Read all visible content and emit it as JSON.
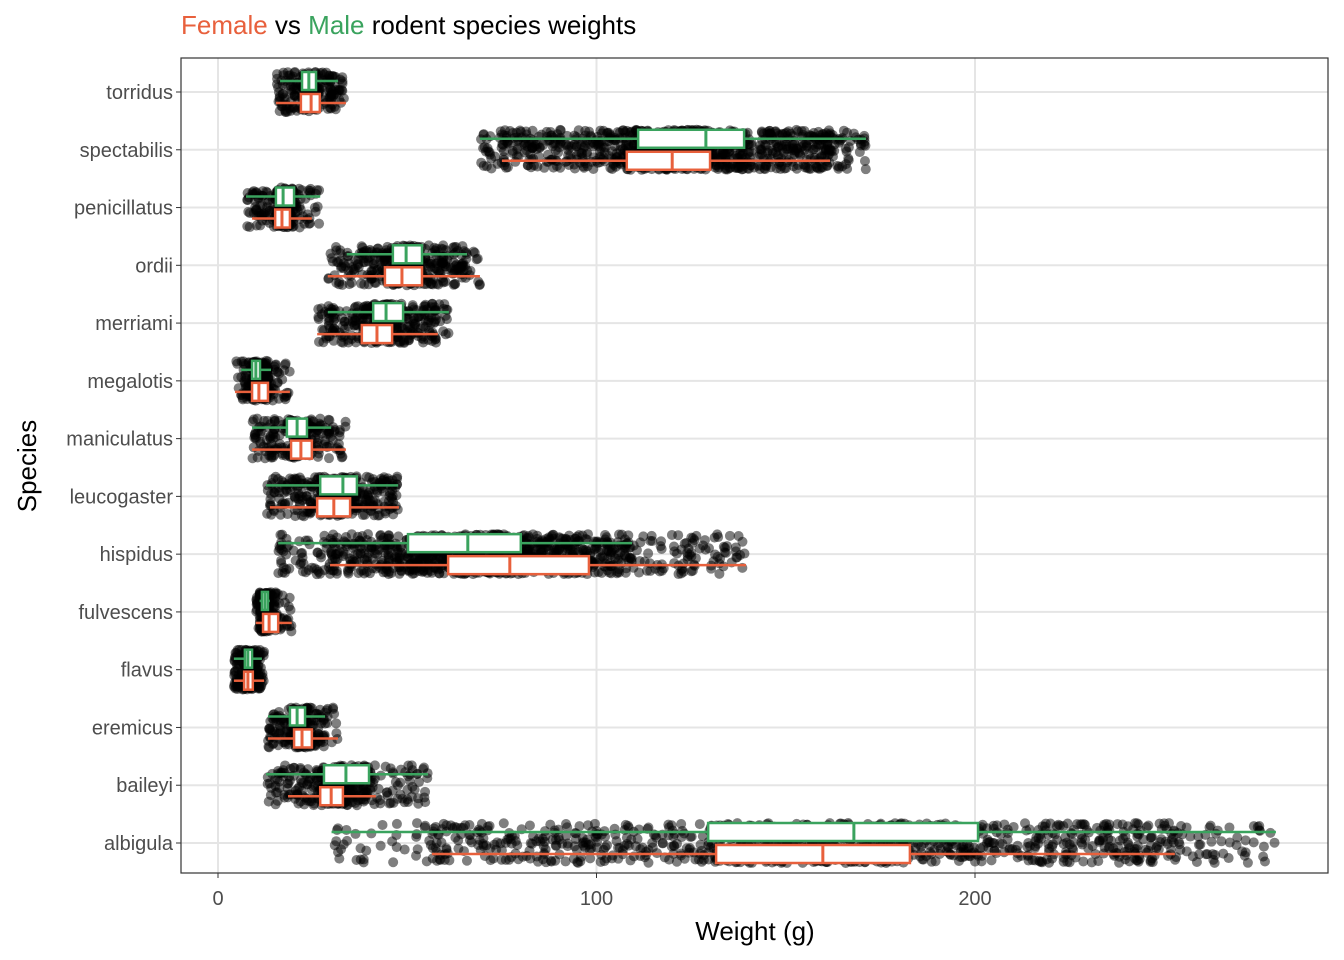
{
  "chart_data": {
    "type": "boxplot",
    "orientation": "horizontal",
    "title": {
      "female_word": "Female",
      "vs_word": " vs ",
      "male_word": "Male",
      "rest": " rodent species weights"
    },
    "xlabel": "Weight (g)",
    "ylabel": "Species",
    "xlim": [
      -10,
      293
    ],
    "xticks": [
      0,
      100,
      200
    ],
    "grid": true,
    "colors": {
      "female": "#E8603C",
      "male": "#3AA35E",
      "points": "#000000"
    },
    "categories": [
      "albigula",
      "baileyi",
      "eremicus",
      "flavus",
      "fulvescens",
      "hispidus",
      "leucogaster",
      "maniculatus",
      "megalotis",
      "merriami",
      "ordii",
      "penicillatus",
      "spectabilis",
      "torridus"
    ],
    "series": [
      {
        "name": "Male",
        "boxes": [
          {
            "low": 30,
            "q1": 129.5,
            "median": 168,
            "q3": 200.8,
            "high": 279.5
          },
          {
            "low": 12.7,
            "q1": 28,
            "median": 33.8,
            "q3": 39.9,
            "high": 55.5
          },
          {
            "low": 13.2,
            "q1": 19,
            "median": 20.9,
            "q3": 23,
            "high": 28.3
          },
          {
            "low": 4.2,
            "q1": 7.1,
            "median": 7.9,
            "q3": 9,
            "high": 11.6
          },
          {
            "low": 11,
            "q1": 11.6,
            "median": 12.4,
            "q3": 13.2,
            "high": 13.7
          },
          {
            "low": 15.9,
            "q1": 50.2,
            "median": 66,
            "q3": 80,
            "high": 109.4
          },
          {
            "low": 12.7,
            "q1": 27,
            "median": 33,
            "q3": 36.7,
            "high": 47.6
          },
          {
            "low": 9,
            "q1": 18.2,
            "median": 20.9,
            "q3": 23.5,
            "high": 29.9
          },
          {
            "low": 6.1,
            "q1": 9,
            "median": 10,
            "q3": 11.1,
            "high": 14
          },
          {
            "low": 29,
            "q1": 41,
            "median": 44.4,
            "q3": 48.9,
            "high": 61
          },
          {
            "low": 34,
            "q1": 46.2,
            "median": 49.7,
            "q3": 53.9,
            "high": 65.8
          },
          {
            "low": 7.4,
            "q1": 15.3,
            "median": 17.2,
            "q3": 20.1,
            "high": 27
          },
          {
            "low": 69.2,
            "q1": 111,
            "median": 128.9,
            "q3": 139,
            "high": 171.2
          },
          {
            "low": 16.4,
            "q1": 22.2,
            "median": 24,
            "q3": 25.9,
            "high": 31.7
          }
        ]
      },
      {
        "name": "Female",
        "boxes": [
          {
            "low": 56.5,
            "q1": 131.6,
            "median": 159.8,
            "q3": 182.8,
            "high": 252.8
          },
          {
            "low": 18.5,
            "q1": 27,
            "median": 29.9,
            "q3": 33,
            "high": 41.7
          },
          {
            "low": 13.2,
            "q1": 20.1,
            "median": 22.2,
            "q3": 24.8,
            "high": 31.7
          },
          {
            "low": 4.2,
            "q1": 6.9,
            "median": 7.9,
            "q3": 9.2,
            "high": 12.2
          },
          {
            "low": 10,
            "q1": 11.9,
            "median": 13.5,
            "q3": 15.9,
            "high": 19.5
          },
          {
            "low": 29.6,
            "q1": 60.8,
            "median": 77.1,
            "q3": 98,
            "high": 139.5
          },
          {
            "low": 13.7,
            "q1": 26.2,
            "median": 30.6,
            "q3": 34.9,
            "high": 47.8
          },
          {
            "low": 9,
            "q1": 19.3,
            "median": 21.9,
            "q3": 24.8,
            "high": 33.8
          },
          {
            "low": 4.5,
            "q1": 9,
            "median": 10.8,
            "q3": 13.2,
            "high": 19
          },
          {
            "low": 26.2,
            "q1": 38,
            "median": 42,
            "q3": 46,
            "high": 58.1
          },
          {
            "low": 29,
            "q1": 44.1,
            "median": 48.6,
            "q3": 53.9,
            "high": 69.2
          },
          {
            "low": 9,
            "q1": 15.1,
            "median": 16.9,
            "q3": 19,
            "high": 24.8
          },
          {
            "low": 75,
            "q1": 108,
            "median": 120,
            "q3": 130,
            "high": 161.7
          },
          {
            "low": 15.3,
            "q1": 21.9,
            "median": 24.6,
            "q3": 26.9,
            "high": 33.8
          }
        ]
      }
    ]
  }
}
